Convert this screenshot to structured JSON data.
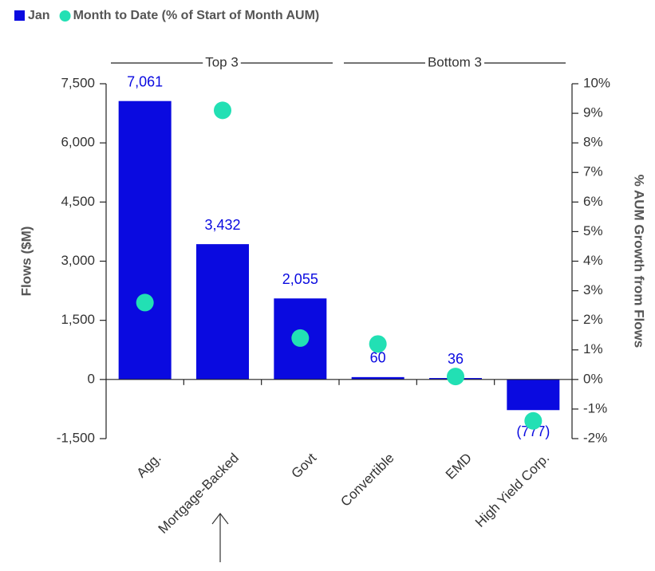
{
  "chart_data": {
    "type": "bar",
    "categories": [
      "Agg.",
      "Mortgage-Backed",
      "Govt",
      "Convertible",
      "EMD",
      "High Yield Corp."
    ],
    "series": [
      {
        "name": "Jan",
        "type": "bar",
        "color": "#0a0ae0",
        "values": [
          7061,
          3432,
          2055,
          60,
          36,
          -777
        ],
        "value_labels": [
          "7,061",
          "3,432",
          "2,055",
          "60",
          "36",
          "(777)"
        ]
      },
      {
        "name": "Month to Date (% of Start of Month AUM)",
        "type": "scatter",
        "axis": "y2",
        "color": "#22e0b4",
        "values": [
          2.6,
          9.1,
          1.4,
          1.2,
          0.1,
          -1.4
        ]
      }
    ],
    "ylabel": "Flows ($M)",
    "y2label": "% AUM Growth from Flows",
    "ylim": [
      -1500,
      7500
    ],
    "yticks": [
      {
        "value": -1500,
        "label": "-1,500"
      },
      0,
      {
        "value": 1500,
        "label": "1,500"
      },
      {
        "value": 3000,
        "label": "3,000"
      },
      {
        "value": 4500,
        "label": "4,500"
      },
      {
        "value": 6000,
        "label": "6,000"
      },
      {
        "value": 7500,
        "label": "7,500"
      }
    ],
    "y2lim": [
      -2,
      10
    ],
    "y2ticks": [
      {
        "value": -2,
        "label": "-2%"
      },
      {
        "value": -1,
        "label": "-1%"
      },
      {
        "value": 0,
        "label": "0%"
      },
      {
        "value": 1,
        "label": "1%"
      },
      {
        "value": 2,
        "label": "2%"
      },
      {
        "value": 3,
        "label": "3%"
      },
      {
        "value": 4,
        "label": "4%"
      },
      {
        "value": 5,
        "label": "5%"
      },
      {
        "value": 6,
        "label": "6%"
      },
      {
        "value": 7,
        "label": "7%"
      },
      {
        "value": 8,
        "label": "8%"
      },
      {
        "value": 9,
        "label": "9%"
      },
      {
        "value": 10,
        "label": "10%"
      }
    ],
    "annotations": [
      "Top 3",
      "Bottom 3"
    ],
    "legend": "top-left"
  }
}
